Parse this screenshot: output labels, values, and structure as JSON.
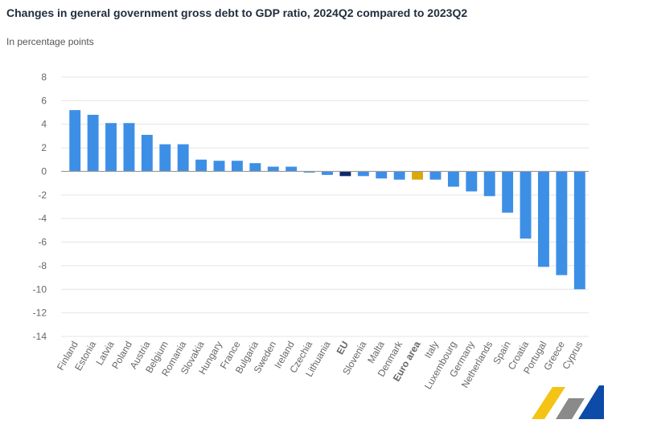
{
  "chart_data": {
    "type": "bar",
    "title": "Changes in general government gross debt to GDP ratio, 2024Q2 compared to 2023Q2",
    "subtitle": "In percentage points",
    "ylim": [
      -14,
      8
    ],
    "yticks": [
      8,
      6,
      4,
      2,
      0,
      -2,
      -4,
      -6,
      -8,
      -10,
      -12,
      -14
    ],
    "grid": true,
    "categories": [
      "Finland",
      "Estonia",
      "Latvia",
      "Poland",
      "Austria",
      "Belgium",
      "Romania",
      "Slovakia",
      "Hungary",
      "France",
      "Bulgaria",
      "Sweden",
      "Ireland",
      "Czechia",
      "Lithuania",
      "EU",
      "Slovenia",
      "Malta",
      "Denmark",
      "Euro area",
      "Italy",
      "Luxembourg",
      "Germany",
      "Netherlands",
      "Spain",
      "Croatia",
      "Portugal",
      "Greece",
      "Cyprus"
    ],
    "values": [
      5.2,
      4.8,
      4.1,
      4.1,
      3.1,
      2.3,
      2.3,
      1.0,
      0.9,
      0.9,
      0.7,
      0.4,
      0.4,
      -0.1,
      -0.3,
      -0.4,
      -0.4,
      -0.6,
      -0.7,
      -0.7,
      -0.7,
      -1.3,
      -1.7,
      -2.1,
      -3.5,
      -5.7,
      -8.1,
      -8.8,
      -10.0
    ],
    "bold_categories": [
      "EU",
      "Euro area"
    ],
    "colors": {
      "default": "#3d8fe6",
      "EU": "#0e2a6b",
      "Euro area": "#d9a90c",
      "grid": "#e4e4e4",
      "axis_text": "#666666"
    }
  }
}
